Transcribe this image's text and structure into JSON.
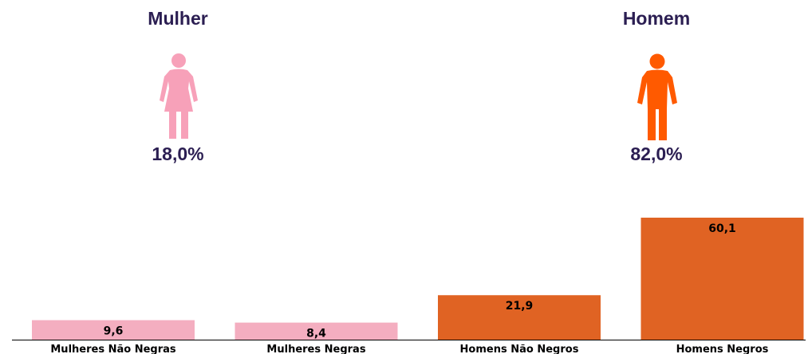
{
  "female": {
    "title": "Mulher",
    "percent": "18,0%",
    "icon": "female-person-icon",
    "color": "#f7a1b9"
  },
  "male": {
    "title": "Homem",
    "percent": "82,0%",
    "icon": "male-person-icon",
    "color": "#ff5a00"
  },
  "chart_data": {
    "type": "bar",
    "categories": [
      "Mulheres Não Negras",
      "Mulheres Negras",
      "Homens Não Negros",
      "Homens Negros"
    ],
    "values": [
      9.6,
      8.4,
      21.9,
      60.1
    ],
    "value_labels": [
      "9,6",
      "8,4",
      "21,9",
      "60,1"
    ],
    "colors": [
      "#f4aec0",
      "#f4aec0",
      "#e06323",
      "#e06323"
    ],
    "title": "",
    "xlabel": "",
    "ylabel": "",
    "ylim": [
      0,
      60.1
    ],
    "grid": false
  }
}
